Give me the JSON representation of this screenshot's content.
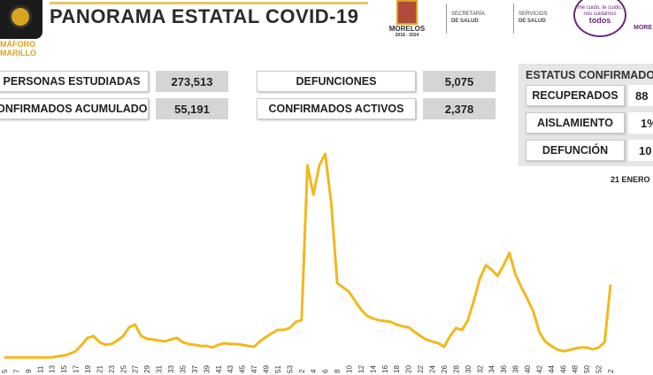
{
  "header": {
    "title": "PANORAMA ESTATAL COVID-19",
    "semaforo": [
      "MÁFORO",
      "MARILLO"
    ],
    "logos": [
      "MORELOS",
      "2018 - 2024",
      "SECRETARÍA",
      "DE SALUD",
      "SERVICIOS",
      "DE SALUD",
      "me cuido, te cuido,",
      "nos cuidamos",
      "todos",
      "MORE"
    ]
  },
  "stats": [
    {
      "label": "PERSONAS ESTUDIADAS",
      "value": "273,513"
    },
    {
      "label": "CONFIRMADOS ACUMULADOS",
      "value": "55,191"
    },
    {
      "label": "DEFUNCIONES",
      "value": "5,075"
    },
    {
      "label": "CONFIRMADOS ACTIVOS",
      "value": "2,378"
    }
  ],
  "status": {
    "title": "ESTATUS CONFIRMADO",
    "rows": [
      {
        "label": "RECUPERADOS",
        "value": "88"
      },
      {
        "label": "AISLAMIENTO",
        "value": "1%"
      },
      {
        "label": "DEFUNCIÓN",
        "value": "10"
      }
    ]
  },
  "date": "21 ENERO",
  "chart_data": {
    "type": "line",
    "color": "#f2b81c",
    "ylim": [
      0,
      100
    ],
    "categories": [
      "5",
      null,
      "7",
      null,
      "9",
      null,
      "11",
      null,
      "13",
      null,
      "15",
      null,
      "17",
      null,
      "19",
      null,
      "21",
      null,
      "23",
      null,
      "25",
      null,
      "27",
      null,
      "29",
      null,
      "31",
      null,
      "33",
      null,
      "35",
      null,
      "37",
      null,
      "39",
      null,
      "41",
      null,
      "43",
      null,
      "45",
      null,
      "47",
      null,
      "49",
      null,
      "51",
      null,
      "53",
      null,
      "2",
      null,
      "4",
      null,
      "6",
      null,
      "8",
      null,
      "10",
      null,
      "12",
      null,
      "14",
      null,
      "16",
      null,
      "18",
      null,
      "20",
      null,
      "22",
      null,
      "24",
      null,
      "26",
      null,
      "28",
      null,
      "30",
      null,
      "32",
      null,
      "34",
      null,
      "36",
      null,
      "38",
      null,
      "40",
      null,
      "42",
      null,
      "44",
      null,
      "46",
      null,
      "48",
      null,
      "50",
      null,
      "52",
      null,
      "2"
    ],
    "values": [
      0.4,
      0.4,
      0.4,
      0.4,
      0.4,
      0.4,
      0.4,
      0.4,
      0.4,
      0.9,
      1.3,
      2.2,
      3.4,
      6.5,
      9.9,
      10.8,
      7.8,
      6.5,
      6.9,
      8.6,
      10.8,
      15.1,
      16.4,
      10.8,
      9.5,
      9.1,
      8.6,
      8.2,
      9.1,
      9.9,
      7.8,
      6.9,
      6.5,
      6,
      6,
      5.2,
      6.5,
      7.3,
      6.9,
      6.9,
      6.5,
      6,
      5.6,
      8.2,
      10.3,
      12.1,
      13.8,
      13.8,
      14.7,
      17.7,
      18.5,
      94,
      79.7,
      94,
      99.6,
      75.4,
      36.6,
      34.5,
      32.3,
      28,
      23.7,
      20.7,
      19.4,
      18.5,
      18.1,
      17.7,
      16.4,
      15.5,
      15.1,
      12.9,
      10.8,
      9.1,
      8.2,
      7.3,
      5.6,
      10.8,
      14.7,
      13.8,
      18.5,
      28,
      38.8,
      45.3,
      43.1,
      40.1,
      45.3,
      51.3,
      40.9,
      34.5,
      28.9,
      22.8,
      12.9,
      8.2,
      6,
      4.3,
      3.4,
      3.9,
      4.7,
      5.2,
      5.2,
      4.3,
      5.2,
      7.8,
      35.8
    ]
  }
}
